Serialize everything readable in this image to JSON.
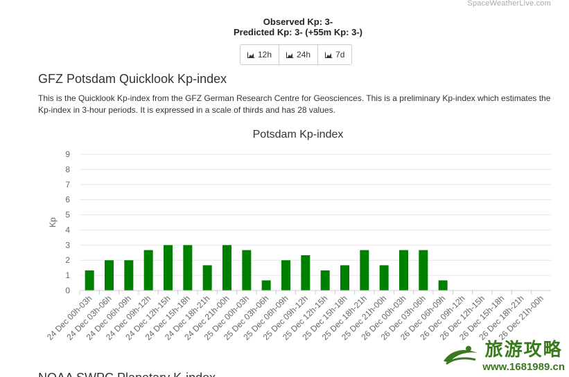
{
  "brand": "SpaceWeatherLive.com",
  "status": {
    "observed_label": "Observed Kp:",
    "observed_value": "3-",
    "predicted_label": "Predicted Kp:",
    "predicted_value": "3-",
    "predicted_extra": "(+55m Kp: 3-)"
  },
  "range_buttons": [
    "12h",
    "24h",
    "7d"
  ],
  "section": {
    "title": "GFZ Potsdam Quicklook Kp-index",
    "description": "This is the Quicklook Kp-index from the GFZ German Research Centre for Geosciences. This is a preliminary Kp-index which estimates the Kp-index in 3-hour periods. It is expressed in a scale of thirds and has 28 values."
  },
  "next_section_title": "NOAA SWPC Planetary K-index",
  "watermark": {
    "main": "旅游攻略",
    "url": "www.1681989.cn"
  },
  "chart_data": {
    "type": "bar",
    "title": "Potsdam Kp-index",
    "ylabel": "Kp",
    "ylim": [
      0,
      9
    ],
    "yticks": [
      0,
      1,
      2,
      3,
      4,
      5,
      6,
      7,
      8,
      9
    ],
    "grid": true,
    "bar_color": "#008000",
    "categories": [
      "24 Dec 00h-03h",
      "24 Dec 03h-06h",
      "24 Dec 06h-09h",
      "24 Dec 09h-12h",
      "24 Dec 12h-15h",
      "24 Dec 15h-18h",
      "24 Dec 18h-21h",
      "24 Dec 21h-00h",
      "25 Dec 00h-03h",
      "25 Dec 03h-06h",
      "25 Dec 06h-09h",
      "25 Dec 09h-12h",
      "25 Dec 12h-15h",
      "25 Dec 15h-18h",
      "25 Dec 18h-21h",
      "25 Dec 21h-00h",
      "26 Dec 00h-03h",
      "26 Dec 03h-06h",
      "26 Dec 06h-09h",
      "26 Dec 09h-12h",
      "26 Dec 12h-15h",
      "26 Dec 15h-18h",
      "26 Dec 18h-21h",
      "26 Dec 21h-00h"
    ],
    "values": [
      1.33,
      2,
      2,
      2.67,
      3,
      3,
      1.67,
      3,
      2.67,
      0.67,
      2,
      2.33,
      1.33,
      1.67,
      2.67,
      1.67,
      2.67,
      2.67,
      0.67,
      null,
      null,
      null,
      null,
      null
    ]
  }
}
